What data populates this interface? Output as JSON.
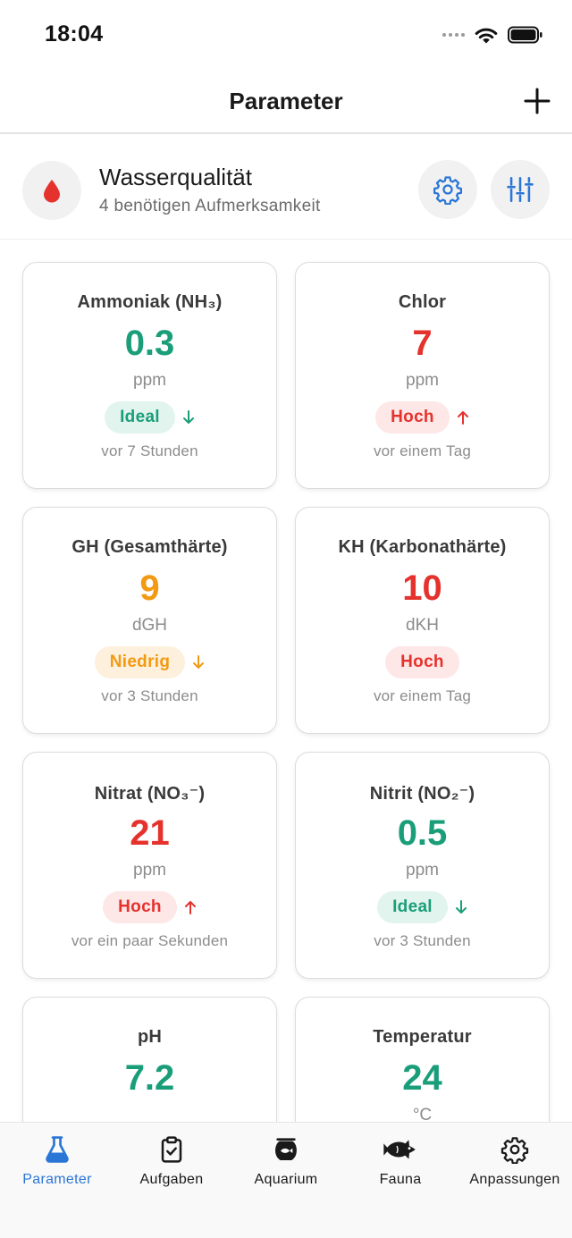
{
  "status_bar": {
    "time": "18:04"
  },
  "nav": {
    "title": "Parameter"
  },
  "summary": {
    "title": "Wasserqualität",
    "subtitle": "4 benötigen Aufmerksamkeit"
  },
  "cards": [
    {
      "title": "Ammoniak (NH₃)",
      "value": "0.3",
      "unit": "ppm",
      "status": "Ideal",
      "trend": "down",
      "time": "vor 7 Stunden",
      "color": "#1a9e7a"
    },
    {
      "title": "Chlor",
      "value": "7",
      "unit": "ppm",
      "status": "Hoch",
      "trend": "up",
      "time": "vor einem Tag",
      "color": "#e5322d"
    },
    {
      "title": "GH (Gesamthärte)",
      "value": "9",
      "unit": "dGH",
      "status": "Niedrig",
      "trend": "down",
      "time": "vor 3 Stunden",
      "color": "#f29a12"
    },
    {
      "title": "KH (Karbonathärte)",
      "value": "10",
      "unit": "dKH",
      "status": "Hoch",
      "trend": "none",
      "time": "vor einem Tag",
      "color": "#e5322d"
    },
    {
      "title": "Nitrat (NO₃⁻)",
      "value": "21",
      "unit": "ppm",
      "status": "Hoch",
      "trend": "up",
      "time": "vor ein paar Sekunden",
      "color": "#e5322d"
    },
    {
      "title": "Nitrit (NO₂⁻)",
      "value": "0.5",
      "unit": "ppm",
      "status": "Ideal",
      "trend": "down",
      "time": "vor 3 Stunden",
      "color": "#1a9e7a"
    },
    {
      "title": "pH",
      "value": "7.2",
      "unit": "",
      "status": "",
      "trend": "none",
      "time": "",
      "color": "#1a9e7a"
    },
    {
      "title": "Temperatur",
      "value": "24",
      "unit": "°C",
      "status": "",
      "trend": "none",
      "time": "",
      "color": "#1a9e7a"
    }
  ],
  "tabs": [
    {
      "label": "Parameter",
      "icon": "flask-icon",
      "active": true
    },
    {
      "label": "Aufgaben",
      "icon": "clipboard-check-icon",
      "active": false
    },
    {
      "label": "Aquarium",
      "icon": "fishbowl-icon",
      "active": false
    },
    {
      "label": "Fauna",
      "icon": "fish-icon",
      "active": false
    },
    {
      "label": "Anpassungen",
      "icon": "gear-icon",
      "active": false
    }
  ],
  "colors": {
    "accent": "#2a76d6",
    "ideal": "#1a9e7a",
    "high": "#e5322d",
    "low": "#f29a12",
    "drop": "#e5322d"
  }
}
